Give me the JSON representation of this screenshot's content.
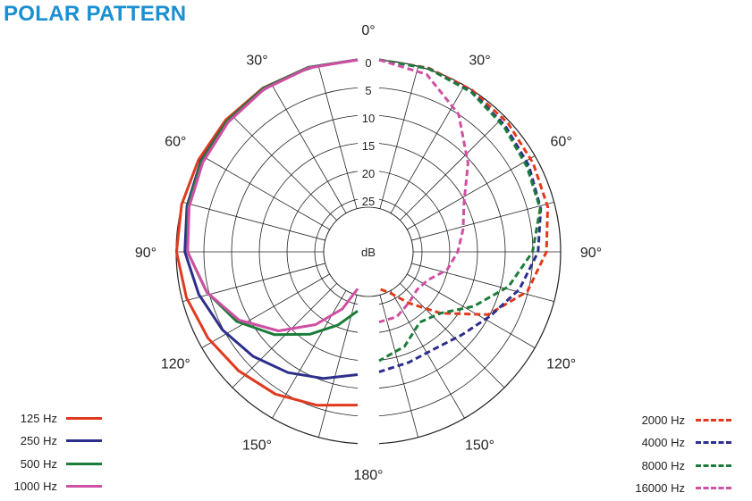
{
  "title": "POLAR PATTERN",
  "chart_data": {
    "type": "line",
    "subtype": "polar",
    "title": "POLAR PATTERN",
    "angle_unit": "degrees",
    "angle_ticks": [
      {
        "angle": 0,
        "label": "0°"
      },
      {
        "angle": 30,
        "label": "30°"
      },
      {
        "angle": 60,
        "label": "60°"
      },
      {
        "angle": 90,
        "label": "90°"
      },
      {
        "angle": 120,
        "label": "120°"
      },
      {
        "angle": 150,
        "label": "150°"
      },
      {
        "angle": 180,
        "label": "180°"
      },
      {
        "angle": 210,
        "label": "150°"
      },
      {
        "angle": 240,
        "label": "120°"
      },
      {
        "angle": 270,
        "label": "90°"
      },
      {
        "angle": 300,
        "label": "60°"
      },
      {
        "angle": 330,
        "label": "30°"
      }
    ],
    "radial_unit": "dB",
    "radial_ticks": [
      "0",
      "5",
      "10",
      "15",
      "20",
      "25"
    ],
    "radial_range_db": [
      0,
      25
    ],
    "angle_step_grid": 15,
    "legend_position": "bottom-left and bottom-right",
    "series": [
      {
        "name": "125 Hz",
        "color": "#e03a1e",
        "dash": "solid",
        "side": "left",
        "angles": [
          0,
          15,
          30,
          45,
          60,
          75,
          90,
          105,
          120,
          135,
          150,
          165,
          180
        ],
        "db": [
          0,
          0.2,
          0.5,
          1.0,
          1.5,
          1.8,
          2.0,
          2.7,
          3.5,
          4.3,
          5.0,
          6.0,
          7.0
        ]
      },
      {
        "name": "250 Hz",
        "color": "#2c2f8c",
        "dash": "solid",
        "side": "left",
        "angles": [
          0,
          15,
          30,
          45,
          60,
          75,
          90,
          105,
          120,
          135,
          150,
          165,
          180
        ],
        "db": [
          0,
          0.2,
          0.6,
          1.3,
          2.0,
          2.8,
          3.5,
          5.0,
          6.5,
          8.0,
          9.5,
          11.0,
          12.5
        ]
      },
      {
        "name": "500 Hz",
        "color": "#1b7d3a",
        "dash": "solid",
        "side": "left",
        "angles": [
          0,
          15,
          30,
          45,
          60,
          75,
          90,
          105,
          120,
          135,
          150,
          165,
          180
        ],
        "db": [
          0,
          0.2,
          0.6,
          1.3,
          2.1,
          3.0,
          4.0,
          6.5,
          9.5,
          13.5,
          17.5,
          21.0,
          24.0
        ]
      },
      {
        "name": "1000 Hz",
        "color": "#cf4fa3",
        "dash": "solid",
        "side": "left",
        "angles": [
          0,
          15,
          30,
          45,
          60,
          75,
          90,
          105,
          120,
          135,
          150,
          165,
          180
        ],
        "db": [
          0,
          0.3,
          0.8,
          1.6,
          2.4,
          3.2,
          4.0,
          6.5,
          10.0,
          14.5,
          19.5,
          24.0,
          28.0
        ]
      },
      {
        "name": "2000 Hz",
        "color": "#e03a1e",
        "dash": "dashed",
        "side": "right",
        "angles": [
          0,
          15,
          30,
          45,
          60,
          75,
          90,
          105,
          120,
          135,
          150,
          165,
          180
        ],
        "db": [
          0,
          0.3,
          1.0,
          1.8,
          2.6,
          3.2,
          4.5,
          7.0,
          12.0,
          19.0,
          24.0,
          27.0,
          28.0
        ]
      },
      {
        "name": "4000 Hz",
        "color": "#2c2f8c",
        "dash": "dashed",
        "side": "right",
        "angles": [
          0,
          15,
          30,
          45,
          60,
          75,
          90,
          105,
          120,
          135,
          150,
          165,
          180
        ],
        "db": [
          0,
          0.4,
          1.3,
          2.5,
          3.5,
          4.5,
          6.0,
          8.5,
          11.5,
          13.5,
          14.5,
          14.0,
          13.0
        ]
      },
      {
        "name": "8000 Hz",
        "color": "#1b7d3a",
        "dash": "dashed",
        "side": "right",
        "angles": [
          0,
          15,
          30,
          45,
          60,
          75,
          90,
          105,
          120,
          135,
          150,
          165,
          180
        ],
        "db": [
          0,
          0.4,
          1.4,
          2.8,
          3.9,
          4.6,
          7.0,
          10.5,
          15.0,
          19.0,
          20.0,
          17.0,
          15.0
        ]
      },
      {
        "name": "16000 Hz",
        "color": "#cf4fa3",
        "dash": "dashed",
        "side": "right",
        "angles": [
          0,
          15,
          30,
          45,
          60,
          75,
          90,
          105,
          120,
          135,
          150,
          165,
          180
        ],
        "db": [
          0,
          1.5,
          6.0,
          12.0,
          17.0,
          19.0,
          20.5,
          22.0,
          24.5,
          25.0,
          24.0,
          22.5,
          22.0
        ]
      }
    ]
  }
}
